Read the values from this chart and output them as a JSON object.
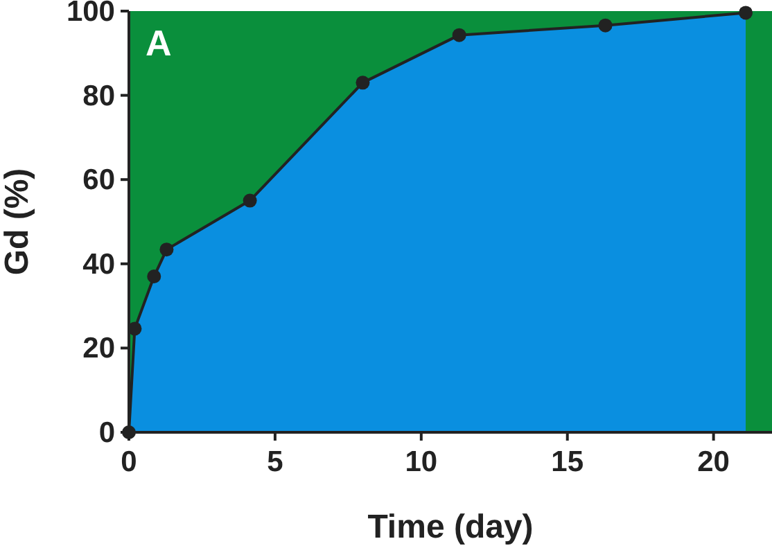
{
  "chart_data": {
    "type": "area",
    "title": "A",
    "xlabel": "Time (day)",
    "ylabel": "Gd (%)",
    "x": [
      0,
      0.2,
      0.86,
      1.29,
      4.14,
      8.0,
      11.3,
      16.3,
      21.1
    ],
    "series": [
      {
        "color": "#0a8fe0",
        "values": [
          0,
          24.6,
          37,
          43.4,
          55,
          83,
          94.3,
          96.6,
          99.6
        ]
      }
    ],
    "bands": [
      {
        "axis": "y",
        "from": 0,
        "to": 100,
        "color": "#0a8f3c"
      }
    ],
    "xlim": [
      0,
      22
    ],
    "ylim": [
      0,
      100
    ],
    "xticks": [
      0,
      5,
      10,
      15,
      20
    ],
    "yticks": [
      0,
      20,
      40,
      60,
      80,
      100
    ],
    "marker": "circle",
    "line_style": "solid",
    "grid": false
  }
}
